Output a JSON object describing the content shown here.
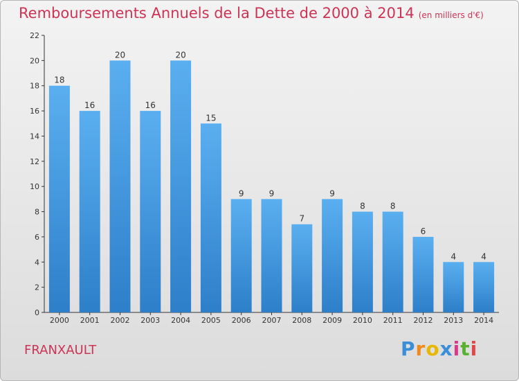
{
  "title": "Remboursements Annuels de la Dette de 2000 à 2014",
  "subtitle": "(en milliers d'€)",
  "commune": "FRANXAULT",
  "logo": {
    "letters": [
      "P",
      "r",
      "o",
      "x",
      "i",
      "t",
      "i"
    ],
    "colors": [
      "#3a8fd8",
      "#f08a1c",
      "#e8b800",
      "#3a8fd8",
      "#d83a8c",
      "#5ab030",
      "#e04848"
    ]
  },
  "colors": {
    "bar_top": "#5aaff0",
    "bar_bottom": "#2d7fc9",
    "axis": "#333333",
    "title": "#cc3355"
  },
  "chart_data": {
    "type": "bar",
    "title": "Remboursements Annuels de la Dette de 2000 à 2014",
    "subtitle": "(en milliers d'€)",
    "categories": [
      "2000",
      "2001",
      "2002",
      "2003",
      "2004",
      "2005",
      "2006",
      "2007",
      "2008",
      "2009",
      "2010",
      "2011",
      "2012",
      "2013",
      "2014"
    ],
    "values": [
      18,
      16,
      20,
      16,
      20,
      15,
      9,
      9,
      7,
      9,
      8,
      8,
      6,
      4,
      4
    ],
    "ylim": [
      0,
      22
    ],
    "yticks": [
      0,
      2,
      4,
      6,
      8,
      10,
      12,
      14,
      16,
      18,
      20,
      22
    ],
    "grid": false,
    "data_labels": true
  }
}
